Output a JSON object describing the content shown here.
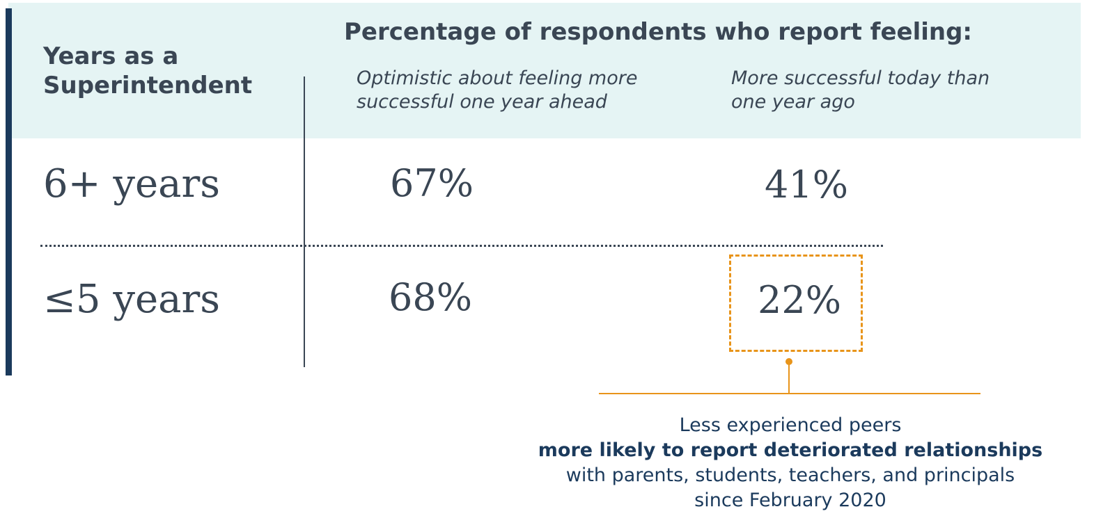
{
  "table": {
    "row_header": "Years as a Superintendent",
    "title": "Percentage of respondents who report feeling:",
    "columns": [
      "Optimistic about feeling more successful one year ahead",
      "More successful today than one year ago"
    ],
    "rows": [
      {
        "label": "6+ years",
        "values": [
          "67%",
          "41%"
        ]
      },
      {
        "label": "≤5 years",
        "values": [
          "68%",
          "22%"
        ]
      }
    ]
  },
  "annotation": {
    "line1": "Less experienced peers",
    "line2": "more likely to report deteriorated relationships",
    "line3": "with parents, students, teachers, and principals",
    "line4": "since February 2020"
  },
  "colors": {
    "header_background": "#e5f4f4",
    "accent_bar": "#1b3a5c",
    "text": "#3a4654",
    "highlight": "#e8941a",
    "annotation_text": "#1b3a5c"
  },
  "chart_data": {
    "type": "table",
    "title": "Percentage of respondents who report feeling:",
    "row_header": "Years as a Superintendent",
    "columns": [
      "Optimistic about feeling more successful one year ahead",
      "More successful today than one year ago"
    ],
    "categories": [
      "6+ years",
      "≤5 years"
    ],
    "series": [
      {
        "name": "Optimistic about feeling more successful one year ahead",
        "values": [
          67,
          68
        ]
      },
      {
        "name": "More successful today than one year ago",
        "values": [
          41,
          22
        ]
      }
    ],
    "highlighted_cell": {
      "row": "≤5 years",
      "column": "More successful today than one year ago",
      "value": 22
    }
  }
}
